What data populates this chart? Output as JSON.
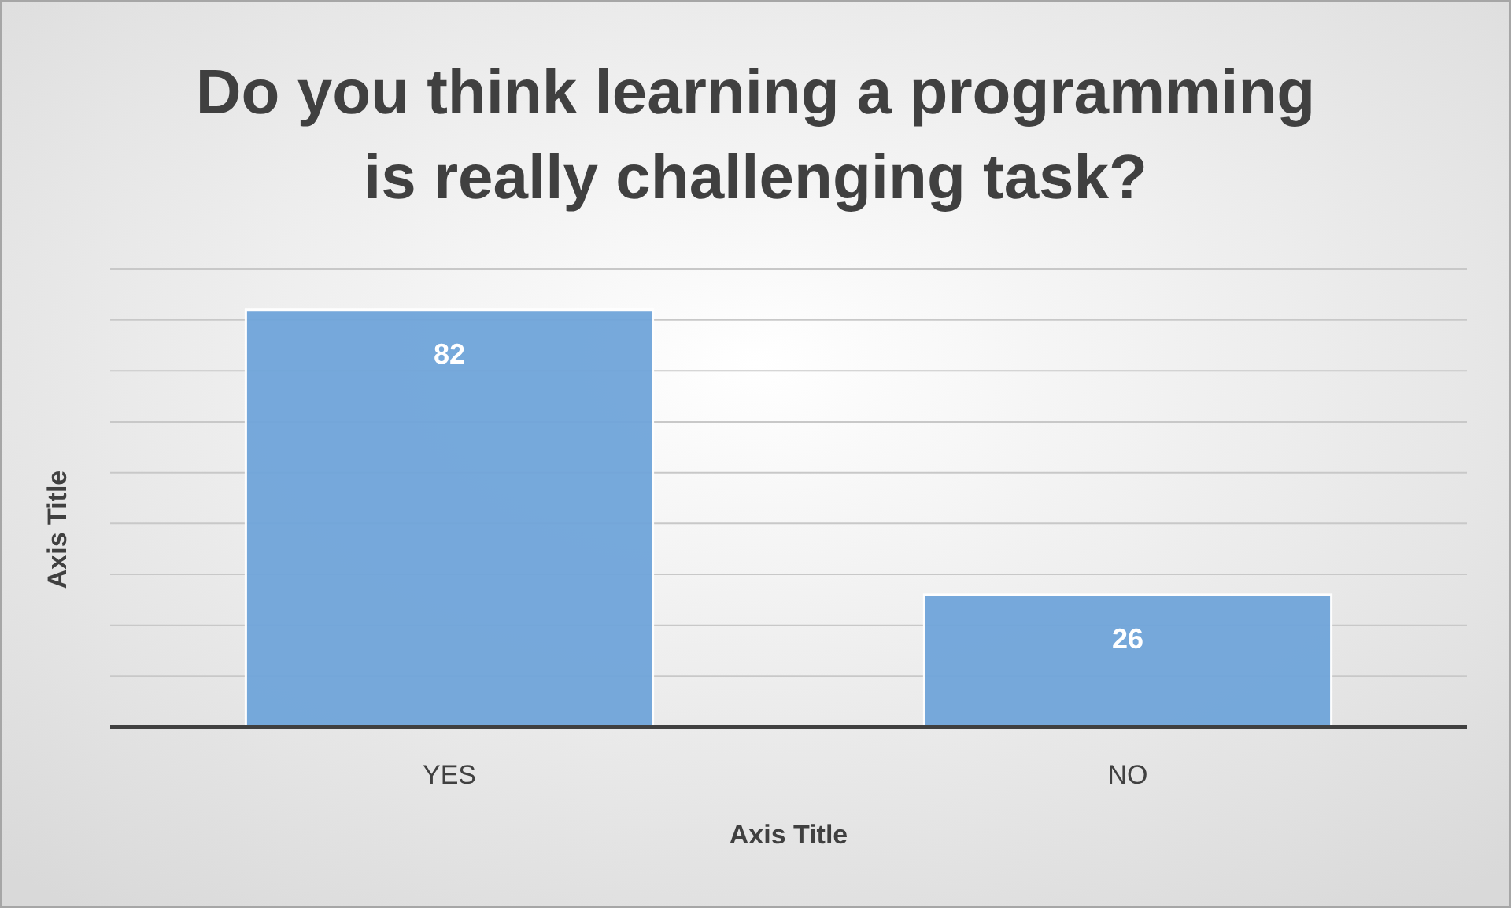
{
  "chart_data": {
    "type": "bar",
    "title": "Do you think learning a programming\nis really challenging task?",
    "xlabel": "Axis Title",
    "ylabel": "Axis Title",
    "categories": [
      "YES",
      "NO"
    ],
    "values": [
      82,
      26
    ],
    "color": "#70a5da",
    "ylim": [
      0,
      90
    ],
    "yticks": [
      {
        "value": 0,
        "label": null
      },
      {
        "value": 10,
        "label": null
      },
      {
        "value": 20,
        "label": null
      },
      {
        "value": 30,
        "label": null
      },
      {
        "value": 40,
        "label": null
      },
      {
        "value": 50,
        "label": null
      },
      {
        "value": 60,
        "label": null
      },
      {
        "value": 70,
        "label": null
      },
      {
        "value": 80,
        "label": null
      },
      {
        "value": 90,
        "label": null
      }
    ],
    "grid": "y",
    "tick_labels": "x",
    "data_labels": true
  }
}
